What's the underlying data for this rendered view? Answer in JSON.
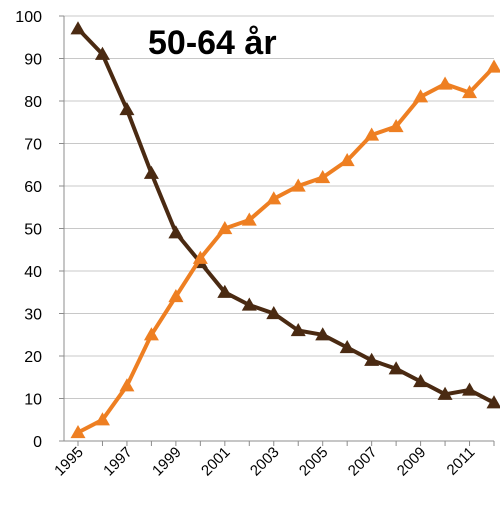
{
  "chart_data": {
    "type": "line",
    "title": "50-64 år",
    "xlabel": "",
    "ylabel": "",
    "ylim": [
      0,
      100
    ],
    "y_ticks": [
      "0",
      "10",
      "20",
      "30",
      "40",
      "50",
      "60",
      "70",
      "80",
      "90",
      "100"
    ],
    "x_tick_labels": [
      "1995",
      "1997",
      "1999",
      "2001",
      "2003",
      "2005",
      "2007",
      "2009",
      "2011"
    ],
    "x": [
      1995,
      1996,
      1997,
      1998,
      1999,
      2000,
      2001,
      2002,
      2003,
      2004,
      2005,
      2006,
      2007,
      2008,
      2009,
      2010,
      2011,
      2012
    ],
    "grid": true,
    "legend": "none",
    "series": [
      {
        "color": "#4a2a12",
        "marker": "triangle",
        "values": [
          97,
          91,
          78,
          63,
          49,
          42,
          35,
          32,
          30,
          26,
          25,
          22,
          19,
          17,
          14,
          11,
          12,
          9
        ]
      },
      {
        "color": "#ee7f22",
        "marker": "triangle",
        "values": [
          2,
          5,
          13,
          25,
          34,
          43,
          50,
          52,
          57,
          60,
          62,
          66,
          72,
          74,
          81,
          84,
          82,
          88
        ]
      }
    ]
  }
}
